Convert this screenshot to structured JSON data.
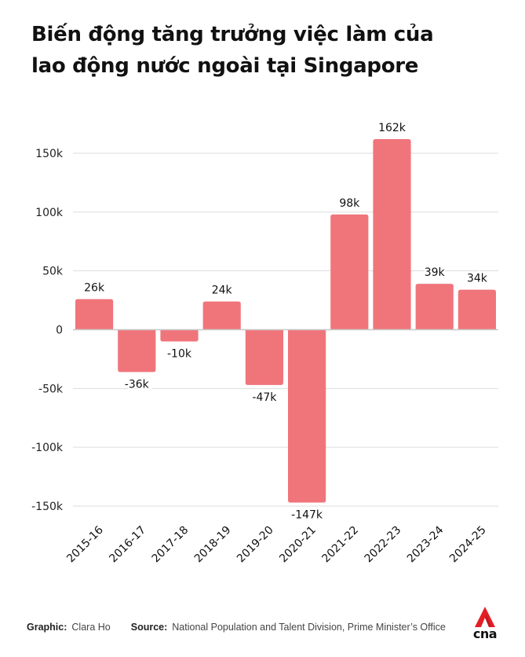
{
  "header": {
    "title_line1": "Biến động tăng trưởng việc làm của",
    "title_line2": "lao động nước ngoài tại Singapore"
  },
  "chart_data": {
    "type": "bar",
    "title": "Biến động tăng trưởng việc làm của lao động nước ngoài tại Singapore",
    "xlabel": "",
    "ylabel": "",
    "categories": [
      "2015-16",
      "2016-17",
      "2017-18",
      "2018-19",
      "2019-20",
      "2020-21",
      "2021-22",
      "2022-23",
      "2023-24",
      "2024-25"
    ],
    "values": [
      26000,
      -36000,
      -10000,
      24000,
      -47000,
      -147000,
      98000,
      162000,
      39000,
      34000
    ],
    "data_labels": [
      "26k",
      "-36k",
      "-10k",
      "24k",
      "-47k",
      "-147k",
      "98k",
      "162k",
      "39k",
      "34k"
    ],
    "ylim": [
      -150000,
      150000
    ],
    "yticks": [
      150000,
      100000,
      50000,
      0,
      -50000,
      -100000,
      -150000
    ],
    "ytick_labels": [
      "150k",
      "100k",
      "50k",
      "0",
      "-50k",
      "-100k",
      "-150k"
    ],
    "grid": true,
    "legend": "none",
    "bar_color": "#f0757b",
    "grid_color": "#dddddd",
    "zero_line_color": "#c8c8c8"
  },
  "footer": {
    "graphic_label": "Graphic:",
    "graphic_value": "Clara Ho",
    "source_label": "Source:",
    "source_value": "National Population and Talent Division, Prime Minister’s Office",
    "logo_text": "cna",
    "logo_color": "#e31e24"
  }
}
